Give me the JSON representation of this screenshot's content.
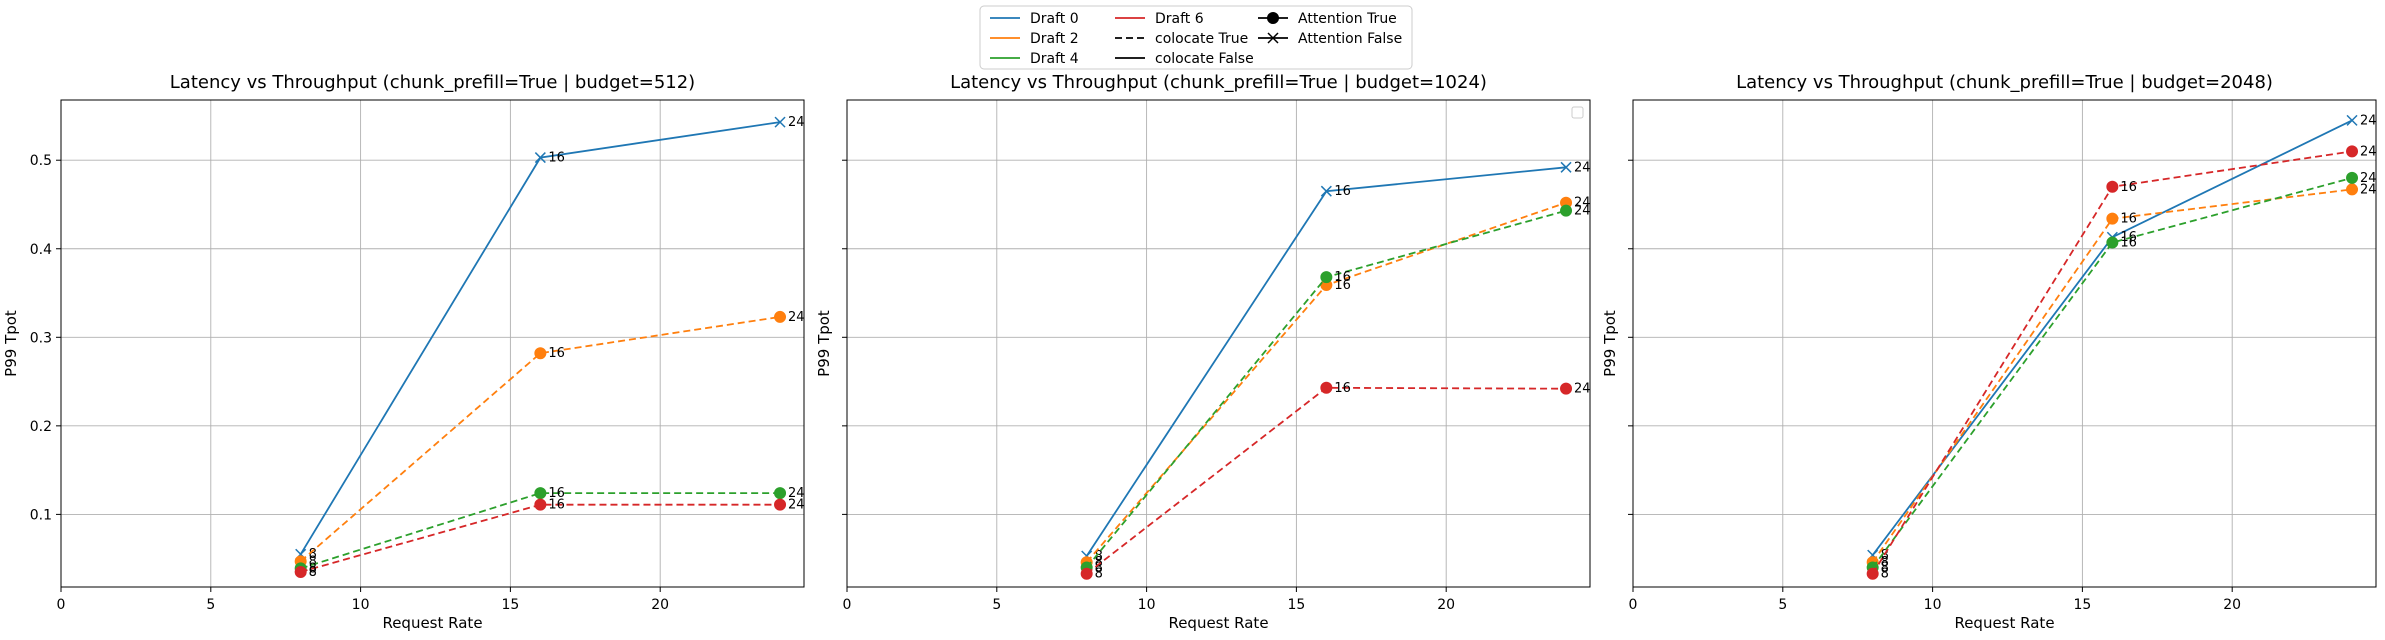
{
  "legend": {
    "position": "top-center",
    "entries": [
      {
        "label": "Draft 0",
        "style": "solid",
        "color": "#1f77b4",
        "marker": "none"
      },
      {
        "label": "Draft 2",
        "style": "solid",
        "color": "#ff7f0e",
        "marker": "none"
      },
      {
        "label": "Draft 4",
        "style": "solid",
        "color": "#2ca02c",
        "marker": "none"
      },
      {
        "label": "Draft 6",
        "style": "solid",
        "color": "#d62728",
        "marker": "none"
      },
      {
        "label": "colocate True",
        "style": "dashed",
        "color": "#000000",
        "marker": "none"
      },
      {
        "label": "colocate False",
        "style": "solid",
        "color": "#000000",
        "marker": "none"
      },
      {
        "label": "Attention True",
        "style": "solid",
        "color": "#000000",
        "marker": "circle"
      },
      {
        "label": "Attention False",
        "style": "solid",
        "color": "#000000",
        "marker": "x"
      }
    ]
  },
  "chart_data": [
    {
      "type": "line",
      "title": "Latency vs Throughput (chunk_prefill=True | budget=512)",
      "xlabel": "Request Rate",
      "ylabel": "P99 Tpot",
      "xlim": [
        0,
        24.8
      ],
      "ylim": [
        0.018,
        0.568
      ],
      "xticks": [
        0,
        5,
        10,
        15,
        20
      ],
      "yticks": [
        0.1,
        0.2,
        0.3,
        0.4,
        0.5
      ],
      "grid": true,
      "series": [
        {
          "name": "Draft 0",
          "color": "#1f77b4",
          "dashed": false,
          "marker": "x",
          "x": [
            8,
            16,
            24
          ],
          "y": [
            0.055,
            0.503,
            0.543
          ],
          "labels": [
            "8",
            "16",
            "24"
          ]
        },
        {
          "name": "Draft 2",
          "color": "#ff7f0e",
          "dashed": true,
          "marker": "circle",
          "x": [
            8,
            16,
            24
          ],
          "y": [
            0.047,
            0.282,
            0.323
          ],
          "labels": [
            "8",
            "16",
            "24"
          ]
        },
        {
          "name": "Draft 4",
          "color": "#2ca02c",
          "dashed": true,
          "marker": "circle",
          "x": [
            8,
            16,
            24
          ],
          "y": [
            0.039,
            0.124,
            0.124
          ],
          "labels": [
            "8",
            "16",
            "24"
          ]
        },
        {
          "name": "Draft 6",
          "color": "#d62728",
          "dashed": true,
          "marker": "circle",
          "x": [
            8,
            16,
            24
          ],
          "y": [
            0.035,
            0.111,
            0.111
          ],
          "labels": [
            "8",
            "16",
            "24"
          ]
        }
      ]
    },
    {
      "type": "line",
      "title": "Latency vs Throughput (chunk_prefill=True | budget=1024)",
      "xlabel": "Request Rate",
      "ylabel": "P99 Tpot",
      "xlim": [
        0,
        24.8
      ],
      "ylim": [
        0.018,
        0.568
      ],
      "xticks": [
        0,
        5,
        10,
        15,
        20
      ],
      "yticks": [
        0.1,
        0.2,
        0.3,
        0.4,
        0.5
      ],
      "grid": true,
      "empty_legend_box": true,
      "series": [
        {
          "name": "Draft 0",
          "color": "#1f77b4",
          "dashed": false,
          "marker": "x",
          "x": [
            8,
            16,
            24
          ],
          "y": [
            0.053,
            0.465,
            0.492
          ],
          "labels": [
            "8",
            "16",
            "24"
          ]
        },
        {
          "name": "Draft 2",
          "color": "#ff7f0e",
          "dashed": true,
          "marker": "circle",
          "x": [
            8,
            16,
            24
          ],
          "y": [
            0.046,
            0.359,
            0.452
          ],
          "labels": [
            "8",
            "16",
            "24"
          ]
        },
        {
          "name": "Draft 4",
          "color": "#2ca02c",
          "dashed": true,
          "marker": "circle",
          "x": [
            8,
            16,
            24
          ],
          "y": [
            0.04,
            0.368,
            0.443
          ],
          "labels": [
            "8",
            "16",
            "24"
          ]
        },
        {
          "name": "Draft 6",
          "color": "#d62728",
          "dashed": true,
          "marker": "circle",
          "x": [
            8,
            16,
            24
          ],
          "y": [
            0.033,
            0.243,
            0.242
          ],
          "labels": [
            "8",
            "16",
            "24"
          ]
        }
      ]
    },
    {
      "type": "line",
      "title": "Latency vs Throughput (chunk_prefill=True | budget=2048)",
      "xlabel": "Request Rate",
      "ylabel": "P99 Tpot",
      "xlim": [
        0,
        24.8
      ],
      "ylim": [
        0.018,
        0.568
      ],
      "xticks": [
        0,
        5,
        10,
        15,
        20
      ],
      "yticks": [
        0.1,
        0.2,
        0.3,
        0.4,
        0.5
      ],
      "grid": true,
      "series": [
        {
          "name": "Draft 0",
          "color": "#1f77b4",
          "dashed": false,
          "marker": "x",
          "x": [
            8,
            16,
            24
          ],
          "y": [
            0.054,
            0.413,
            0.545
          ],
          "labels": [
            "8",
            "16",
            "24"
          ]
        },
        {
          "name": "Draft 2",
          "color": "#ff7f0e",
          "dashed": true,
          "marker": "circle",
          "x": [
            8,
            16,
            24
          ],
          "y": [
            0.046,
            0.434,
            0.467
          ],
          "labels": [
            "8",
            "16",
            "24"
          ]
        },
        {
          "name": "Draft 4",
          "color": "#2ca02c",
          "dashed": true,
          "marker": "circle",
          "x": [
            8,
            16,
            24
          ],
          "y": [
            0.04,
            0.407,
            0.48
          ],
          "labels": [
            "8",
            "16",
            "24"
          ]
        },
        {
          "name": "Draft 6",
          "color": "#d62728",
          "dashed": true,
          "marker": "circle",
          "x": [
            8,
            16,
            24
          ],
          "y": [
            0.033,
            0.47,
            0.51
          ],
          "labels": [
            "8",
            "16",
            "24"
          ]
        }
      ]
    }
  ]
}
